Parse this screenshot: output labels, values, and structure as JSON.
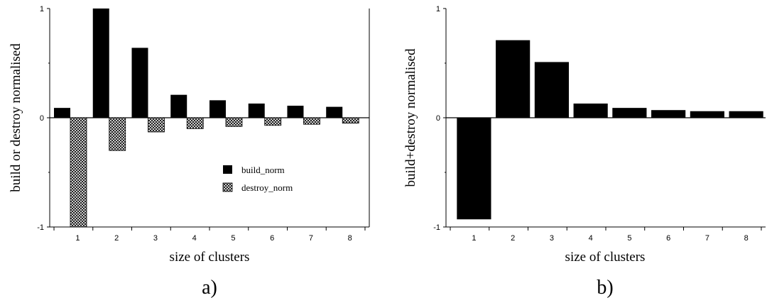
{
  "chart_data": [
    {
      "type": "bar",
      "panel_label": "a)",
      "categories": [
        "1",
        "2",
        "3",
        "4",
        "5",
        "6",
        "7",
        "8"
      ],
      "series": [
        {
          "name": "build_norm",
          "values": [
            0.09,
            1.0,
            0.64,
            0.21,
            0.16,
            0.13,
            0.11,
            0.1
          ],
          "color": "#000000"
        },
        {
          "name": "destroy_norm",
          "values": [
            -1.0,
            -0.3,
            -0.13,
            -0.1,
            -0.08,
            -0.07,
            -0.06,
            -0.05
          ],
          "color": "crosshatch"
        }
      ],
      "xlabel": "size of clusters",
      "ylabel": "build or destroy normalised",
      "ylim": [
        -1,
        1
      ],
      "yticks": [
        "1",
        "0",
        "-1"
      ],
      "legend_position": "center-right",
      "grid": false
    },
    {
      "type": "bar",
      "panel_label": "b)",
      "categories": [
        "1",
        "2",
        "3",
        "4",
        "5",
        "6",
        "7",
        "8"
      ],
      "series": [
        {
          "values": [
            -0.93,
            0.71,
            0.51,
            0.13,
            0.09,
            0.07,
            0.06,
            0.06
          ],
          "color": "#000000"
        }
      ],
      "xlabel": "size of clusters",
      "ylabel": "build+destroy normalised",
      "ylim": [
        -1,
        1
      ],
      "yticks": [
        "1",
        "0",
        "-1"
      ],
      "grid": false
    }
  ]
}
